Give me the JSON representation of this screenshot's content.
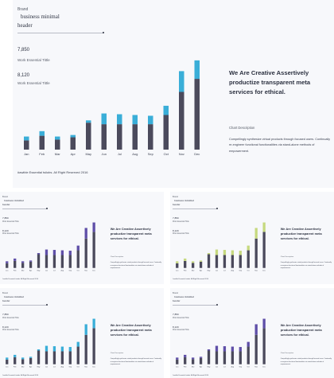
{
  "panel": {
    "brand": "Brand",
    "header_line1": "business minimal",
    "header_line2": "header",
    "stat1_value": "7,850",
    "stat1_label": "Work Essential Tittle",
    "stat2_value": "8,120",
    "stat2_label": "Work Essential Tittle",
    "headline": "We Are Creative Assertively productize transparent meta services for ethical.",
    "chart_caption": "Chart Description",
    "description": "Compellingly synthesize virtual products through focused users. Continually re-engineer functional functionalities via stand-alone methods of empowerment.",
    "footer": "#awible Essential tsiiobs. All Right Reserved 2016"
  },
  "colors": {
    "base": "#4b4a5c",
    "variant_top": [
      "#3aaed8",
      "#5f4fa8",
      "#c6d97f",
      "#3aaed8",
      "#5f4fa8"
    ]
  },
  "chart_data": {
    "type": "bar",
    "stacked": true,
    "categories": [
      "Jan",
      "Feb",
      "Mar",
      "Apr",
      "May",
      "Jun",
      "Jul",
      "Aug",
      "Sep",
      "Oct",
      "Nov",
      "Dec"
    ],
    "series": [
      {
        "values": [
          12,
          18,
          13,
          16,
          35,
          33,
          33,
          33,
          33,
          45,
          75,
          92
        ]
      },
      {
        "values": [
          5,
          6,
          4,
          3,
          3,
          14,
          13,
          12,
          11,
          12,
          27,
          24
        ]
      }
    ],
    "ylim": [
      0,
      120
    ],
    "grid": false,
    "legend": "none"
  }
}
